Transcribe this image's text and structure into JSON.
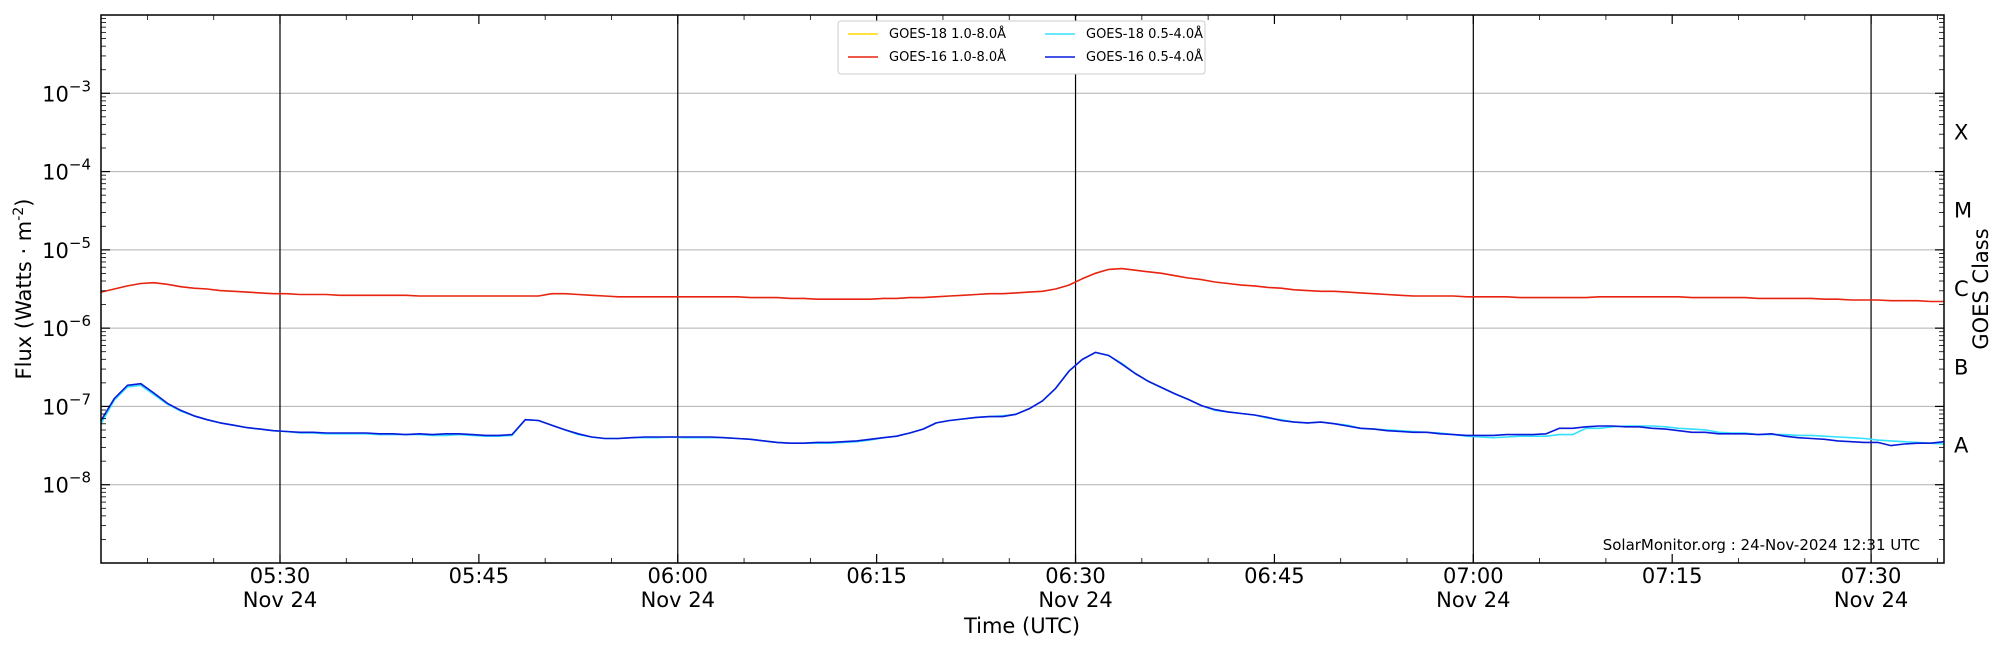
{
  "chart_data": {
    "type": "line",
    "xlabel": "Time (UTC)",
    "ylabel": "Flux (Watts · m",
    "ylabel_exp": "-2",
    "ylabel_close": ")",
    "right_label": "GOES Class",
    "credit": "SolarMonitor.org : 24-Nov-2024 12:31 UTC",
    "x_range_minutes": [
      316.5,
      455.5
    ],
    "ylim_log10": [
      -9.0,
      -2.0
    ],
    "y_scale": "log",
    "y_ticks": [
      {
        "value": -8,
        "base": "10",
        "exp": "−8"
      },
      {
        "value": -7,
        "base": "10",
        "exp": "−7"
      },
      {
        "value": -6,
        "base": "10",
        "exp": "−6"
      },
      {
        "value": -5,
        "base": "10",
        "exp": "−5"
      },
      {
        "value": -4,
        "base": "10",
        "exp": "−4"
      },
      {
        "value": -3,
        "base": "10",
        "exp": "−3"
      }
    ],
    "x_ticks": [
      {
        "minute": 330,
        "label": "05:30",
        "sub": "Nov 24"
      },
      {
        "minute": 345,
        "label": "05:45",
        "sub": ""
      },
      {
        "minute": 360,
        "label": "06:00",
        "sub": "Nov 24"
      },
      {
        "minute": 375,
        "label": "06:15",
        "sub": ""
      },
      {
        "minute": 390,
        "label": "06:30",
        "sub": "Nov 24"
      },
      {
        "minute": 405,
        "label": "06:45",
        "sub": ""
      },
      {
        "minute": 420,
        "label": "07:00",
        "sub": "Nov 24"
      },
      {
        "minute": 435,
        "label": "07:15",
        "sub": ""
      },
      {
        "minute": 450,
        "label": "07:30",
        "sub": "Nov 24"
      }
    ],
    "major_vlines": [
      330,
      360,
      390,
      420,
      450
    ],
    "goes_classes": [
      {
        "label": "A",
        "log10": -7.5
      },
      {
        "label": "B",
        "log10": -6.5
      },
      {
        "label": "C",
        "log10": -5.5
      },
      {
        "label": "M",
        "log10": -4.5
      },
      {
        "label": "X",
        "log10": -3.5
      }
    ],
    "legend": {
      "placement": "top-center",
      "entries": [
        {
          "name": "GOES-18 1.0-8.0Å",
          "color": "#ffd700"
        },
        {
          "name": "GOES-16 1.0-8.0Å",
          "color": "#e8230f"
        },
        {
          "name": "GOES-18 0.5-4.0Å",
          "color": "#33e0ff"
        },
        {
          "name": "GOES-16 0.5-4.0Å",
          "color": "#0a1adb"
        }
      ]
    },
    "grid": "horizontal",
    "series": [
      {
        "name": "GOES-16 1.0-8.0Å",
        "color": "#e8230f",
        "x": [
          316.5,
          317.5,
          318.5,
          319.5,
          320.5,
          321.5,
          322.5,
          323.5,
          324.5,
          325.5,
          326.5,
          327.5,
          328.5,
          329.5,
          330.5,
          331.5,
          332.5,
          333.5,
          334.5,
          335.5,
          336.5,
          337.5,
          338.5,
          339.5,
          340.5,
          341.5,
          342.5,
          343.5,
          344.5,
          345.5,
          346.5,
          347.5,
          348.5,
          349.5,
          350.5,
          351.5,
          352.5,
          353.5,
          354.5,
          355.5,
          356.5,
          357.5,
          358.5,
          359.5,
          360.5,
          361.5,
          362.5,
          363.5,
          364.5,
          365.5,
          366.5,
          367.5,
          368.5,
          369.5,
          370.5,
          371.5,
          372.5,
          373.5,
          374.5,
          375.5,
          376.5,
          377.5,
          378.5,
          379.5,
          380.5,
          381.5,
          382.5,
          383.5,
          384.5,
          385.5,
          386.5,
          387.5,
          388.5,
          389.5,
          390.5,
          391.5,
          392.5,
          393.5,
          394.5,
          395.5,
          396.5,
          397.5,
          398.5,
          399.5,
          400.5,
          401.5,
          402.5,
          403.5,
          404.5,
          405.5,
          406.5,
          407.5,
          408.5,
          409.5,
          410.5,
          411.5,
          412.5,
          413.5,
          414.5,
          415.5,
          416.5,
          417.5,
          418.5,
          419.5,
          420.5,
          421.5,
          422.5,
          423.5,
          424.5,
          425.5,
          426.5,
          427.5,
          428.5,
          429.5,
          430.5,
          431.5,
          432.5,
          433.5,
          434.5,
          435.5,
          436.5,
          437.5,
          438.5,
          439.5,
          440.5,
          441.5,
          442.5,
          443.5,
          444.5,
          445.5,
          446.5,
          447.5,
          448.5,
          449.5,
          450.5,
          451.5,
          452.5,
          453.5,
          454.5,
          455.5
        ],
        "y": [
          -5.54,
          -5.5,
          -5.46,
          -5.43,
          -5.42,
          -5.44,
          -5.47,
          -5.49,
          -5.5,
          -5.52,
          -5.53,
          -5.54,
          -5.55,
          -5.56,
          -5.56,
          -5.57,
          -5.57,
          -5.57,
          -5.58,
          -5.58,
          -5.58,
          -5.58,
          -5.58,
          -5.58,
          -5.59,
          -5.59,
          -5.59,
          -5.59,
          -5.59,
          -5.59,
          -5.59,
          -5.59,
          -5.59,
          -5.59,
          -5.56,
          -5.56,
          -5.57,
          -5.58,
          -5.59,
          -5.6,
          -5.6,
          -5.6,
          -5.6,
          -5.6,
          -5.6,
          -5.6,
          -5.6,
          -5.6,
          -5.6,
          -5.61,
          -5.61,
          -5.61,
          -5.62,
          -5.62,
          -5.63,
          -5.63,
          -5.63,
          -5.63,
          -5.63,
          -5.62,
          -5.62,
          -5.61,
          -5.61,
          -5.6,
          -5.59,
          -5.58,
          -5.57,
          -5.56,
          -5.56,
          -5.55,
          -5.54,
          -5.53,
          -5.5,
          -5.45,
          -5.37,
          -5.3,
          -5.25,
          -5.24,
          -5.26,
          -5.28,
          -5.3,
          -5.33,
          -5.36,
          -5.38,
          -5.41,
          -5.43,
          -5.45,
          -5.46,
          -5.48,
          -5.49,
          -5.51,
          -5.52,
          -5.53,
          -5.53,
          -5.54,
          -5.55,
          -5.56,
          -5.57,
          -5.58,
          -5.59,
          -5.59,
          -5.59,
          -5.59,
          -5.6,
          -5.6,
          -5.6,
          -5.6,
          -5.61,
          -5.61,
          -5.61,
          -5.61,
          -5.61,
          -5.61,
          -5.6,
          -5.6,
          -5.6,
          -5.6,
          -5.6,
          -5.6,
          -5.6,
          -5.61,
          -5.61,
          -5.61,
          -5.61,
          -5.61,
          -5.62,
          -5.62,
          -5.62,
          -5.62,
          -5.62,
          -5.63,
          -5.63,
          -5.64,
          -5.64,
          -5.64,
          -5.65,
          -5.65,
          -5.65,
          -5.66,
          -5.66
        ]
      },
      {
        "name": "GOES-18 0.5-4.0Å",
        "color": "#33e0ff",
        "x": [
          316.5,
          317.5,
          318.5,
          319.5,
          320.5,
          321.5,
          322.5,
          323.5,
          324.5,
          325.5,
          326.5,
          327.5,
          328.5,
          329.5,
          330.5,
          331.5,
          332.5,
          333.5,
          334.5,
          335.5,
          336.5,
          337.5,
          338.5,
          339.5,
          340.5,
          341.5,
          342.5,
          343.5,
          344.5,
          345.5,
          346.5,
          347.5,
          348.5,
          349.5,
          350.5,
          351.5,
          352.5,
          353.5,
          354.5,
          355.5,
          356.5,
          357.5,
          358.5,
          359.5,
          360.5,
          361.5,
          362.5,
          363.5,
          364.5,
          365.5,
          366.5,
          367.5,
          368.5,
          369.5,
          370.5,
          371.5,
          372.5,
          373.5,
          374.5,
          375.5,
          376.5,
          377.5,
          378.5,
          379.5,
          380.5,
          381.5,
          382.5,
          383.5,
          384.5,
          385.5,
          386.5,
          387.5,
          388.5,
          389.5,
          390.5,
          391.5,
          392.5,
          393.5,
          394.5,
          395.5,
          396.5,
          397.5,
          398.5,
          399.5,
          400.5,
          401.5,
          402.5,
          403.5,
          404.5,
          405.5,
          406.5,
          407.5,
          408.5,
          409.5,
          410.5,
          411.5,
          412.5,
          413.5,
          414.5,
          415.5,
          416.5,
          417.5,
          418.5,
          419.5,
          420.5,
          421.5,
          422.5,
          423.5,
          424.5,
          425.5,
          426.5,
          427.5,
          428.5,
          429.5,
          430.5,
          431.5,
          432.5,
          433.5,
          434.5,
          435.5,
          436.5,
          437.5,
          438.5,
          439.5,
          440.5,
          441.5,
          442.5,
          443.5,
          444.5,
          445.5,
          446.5,
          447.5,
          448.5,
          449.5,
          450.5,
          451.5,
          452.5,
          453.5,
          454.5,
          455.5
        ],
        "y": [
          -7.22,
          -6.92,
          -6.75,
          -6.73,
          -6.85,
          -6.97,
          -7.06,
          -7.12,
          -7.17,
          -7.21,
          -7.24,
          -7.27,
          -7.29,
          -7.31,
          -7.32,
          -7.34,
          -7.34,
          -7.35,
          -7.35,
          -7.35,
          -7.35,
          -7.36,
          -7.36,
          -7.36,
          -7.36,
          -7.37,
          -7.37,
          -7.36,
          -7.37,
          -7.38,
          -7.38,
          -7.37,
          -7.17,
          -7.18,
          -7.24,
          -7.3,
          -7.36,
          -7.39,
          -7.41,
          -7.41,
          -7.4,
          -7.4,
          -7.4,
          -7.39,
          -7.4,
          -7.4,
          -7.4,
          -7.4,
          -7.41,
          -7.42,
          -7.44,
          -7.46,
          -7.47,
          -7.47,
          -7.47,
          -7.47,
          -7.46,
          -7.45,
          -7.43,
          -7.4,
          -7.38,
          -7.34,
          -7.29,
          -7.21,
          -7.18,
          -7.16,
          -7.14,
          -7.13,
          -7.12,
          -7.1,
          -7.03,
          -6.93,
          -6.77,
          -6.55,
          -6.4,
          -6.31,
          -6.35,
          -6.45,
          -6.58,
          -6.68,
          -6.76,
          -6.84,
          -6.91,
          -6.99,
          -7.05,
          -7.07,
          -7.09,
          -7.11,
          -7.15,
          -7.17,
          -7.2,
          -7.21,
          -7.2,
          -7.22,
          -7.24,
          -7.28,
          -7.29,
          -7.3,
          -7.31,
          -7.32,
          -7.33,
          -7.34,
          -7.36,
          -7.38,
          -7.39,
          -7.4,
          -7.39,
          -7.38,
          -7.38,
          -7.38,
          -7.36,
          -7.36,
          -7.28,
          -7.28,
          -7.26,
          -7.25,
          -7.25,
          -7.25,
          -7.26,
          -7.28,
          -7.29,
          -7.3,
          -7.33,
          -7.34,
          -7.34,
          -7.36,
          -7.36,
          -7.36,
          -7.37,
          -7.37,
          -7.38,
          -7.39,
          -7.4,
          -7.41,
          -7.43,
          -7.44,
          -7.45,
          -7.46,
          -7.47,
          -7.48
        ]
      },
      {
        "name": "GOES-16 0.5-4.0Å",
        "color": "#0a1adb",
        "x": [
          316.5,
          317.5,
          318.5,
          319.5,
          320.5,
          321.5,
          322.5,
          323.5,
          324.5,
          325.5,
          326.5,
          327.5,
          328.5,
          329.5,
          330.5,
          331.5,
          332.5,
          333.5,
          334.5,
          335.5,
          336.5,
          337.5,
          338.5,
          339.5,
          340.5,
          341.5,
          342.5,
          343.5,
          344.5,
          345.5,
          346.5,
          347.5,
          348.5,
          349.5,
          350.5,
          351.5,
          352.5,
          353.5,
          354.5,
          355.5,
          356.5,
          357.5,
          358.5,
          359.5,
          360.5,
          361.5,
          362.5,
          363.5,
          364.5,
          365.5,
          366.5,
          367.5,
          368.5,
          369.5,
          370.5,
          371.5,
          372.5,
          373.5,
          374.5,
          375.5,
          376.5,
          377.5,
          378.5,
          379.5,
          380.5,
          381.5,
          382.5,
          383.5,
          384.5,
          385.5,
          386.5,
          387.5,
          388.5,
          389.5,
          390.5,
          391.5,
          392.5,
          393.5,
          394.5,
          395.5,
          396.5,
          397.5,
          398.5,
          399.5,
          400.5,
          401.5,
          402.5,
          403.5,
          404.5,
          405.5,
          406.5,
          407.5,
          408.5,
          409.5,
          410.5,
          411.5,
          412.5,
          413.5,
          414.5,
          415.5,
          416.5,
          417.5,
          418.5,
          419.5,
          420.5,
          421.5,
          422.5,
          423.5,
          424.5,
          425.5,
          426.5,
          427.5,
          428.5,
          429.5,
          430.5,
          431.5,
          432.5,
          433.5,
          434.5,
          435.5,
          436.5,
          437.5,
          438.5,
          439.5,
          440.5,
          441.5,
          442.5,
          443.5,
          444.5,
          445.5,
          446.5,
          447.5,
          448.5,
          449.5,
          450.5,
          451.5,
          452.5,
          453.5,
          454.5,
          455.5
        ],
        "y": [
          -7.18,
          -6.9,
          -6.73,
          -6.71,
          -6.83,
          -6.96,
          -7.05,
          -7.12,
          -7.17,
          -7.21,
          -7.24,
          -7.27,
          -7.29,
          -7.31,
          -7.32,
          -7.33,
          -7.33,
          -7.34,
          -7.34,
          -7.34,
          -7.34,
          -7.35,
          -7.35,
          -7.36,
          -7.35,
          -7.36,
          -7.35,
          -7.35,
          -7.36,
          -7.37,
          -7.37,
          -7.36,
          -7.17,
          -7.18,
          -7.24,
          -7.3,
          -7.35,
          -7.39,
          -7.41,
          -7.41,
          -7.4,
          -7.39,
          -7.39,
          -7.39,
          -7.39,
          -7.39,
          -7.39,
          -7.4,
          -7.41,
          -7.42,
          -7.44,
          -7.46,
          -7.47,
          -7.47,
          -7.46,
          -7.46,
          -7.45,
          -7.44,
          -7.42,
          -7.4,
          -7.38,
          -7.34,
          -7.29,
          -7.21,
          -7.18,
          -7.16,
          -7.14,
          -7.13,
          -7.13,
          -7.1,
          -7.03,
          -6.93,
          -6.77,
          -6.55,
          -6.4,
          -6.31,
          -6.35,
          -6.46,
          -6.58,
          -6.68,
          -6.76,
          -6.84,
          -6.91,
          -6.99,
          -7.04,
          -7.07,
          -7.09,
          -7.11,
          -7.14,
          -7.18,
          -7.2,
          -7.21,
          -7.2,
          -7.22,
          -7.25,
          -7.28,
          -7.29,
          -7.31,
          -7.32,
          -7.33,
          -7.33,
          -7.35,
          -7.36,
          -7.37,
          -7.37,
          -7.37,
          -7.36,
          -7.36,
          -7.36,
          -7.35,
          -7.28,
          -7.28,
          -7.26,
          -7.25,
          -7.25,
          -7.26,
          -7.26,
          -7.28,
          -7.29,
          -7.31,
          -7.33,
          -7.33,
          -7.35,
          -7.35,
          -7.35,
          -7.36,
          -7.35,
          -7.38,
          -7.4,
          -7.41,
          -7.42,
          -7.44,
          -7.45,
          -7.46,
          -7.46,
          -7.5,
          -7.48,
          -7.47,
          -7.47,
          -7.45
        ]
      }
    ]
  }
}
